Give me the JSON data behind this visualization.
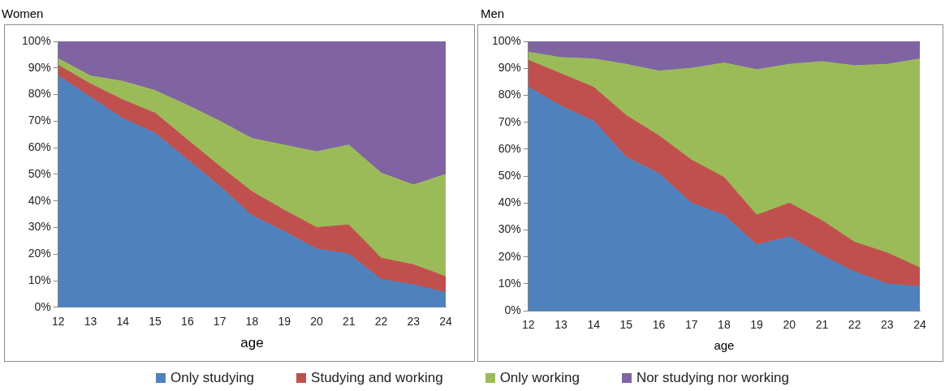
{
  "chart_data": [
    {
      "type": "area",
      "title": "Women",
      "xlabel": "age",
      "stacked": true,
      "legend": "bottom",
      "categories": [
        "12",
        "13",
        "14",
        "15",
        "16",
        "17",
        "18",
        "19",
        "20",
        "21",
        "22",
        "23",
        "24"
      ],
      "ylim": [
        0,
        100
      ],
      "yticks": [
        {
          "value": 0,
          "label": "0%"
        },
        {
          "value": 10,
          "label": "10%"
        },
        {
          "value": 20,
          "label": "20%"
        },
        {
          "value": 30,
          "label": "30%"
        },
        {
          "value": 40,
          "label": "40%"
        },
        {
          "value": 50,
          "label": "50%"
        },
        {
          "value": 60,
          "label": "60%"
        },
        {
          "value": 70,
          "label": "70%"
        },
        {
          "value": 80,
          "label": "80%"
        },
        {
          "value": 90,
          "label": "90%"
        },
        {
          "value": 100,
          "label": "100%"
        }
      ],
      "series": [
        {
          "name": "Only studying",
          "color": "#4f81bd",
          "values": [
            87,
            79,
            71,
            65.5,
            55.5,
            45.5,
            34.5,
            28.5,
            22,
            20,
            10.5,
            8.5,
            5.5
          ]
        },
        {
          "name": "Studying and working",
          "color": "#c0504d",
          "values": [
            4,
            5,
            7,
            7.5,
            7.5,
            7.5,
            9,
            8,
            8,
            11,
            8,
            7.5,
            6
          ]
        },
        {
          "name": "Only working",
          "color": "#9bbb59",
          "values": [
            2.5,
            3,
            7,
            8.5,
            13,
            17,
            20,
            24.5,
            28.5,
            30,
            32,
            30,
            38.5
          ]
        },
        {
          "name": "Nor studying nor working",
          "color": "#8064a2",
          "values": [
            6.5,
            13,
            15,
            18.5,
            24,
            30,
            36.5,
            39,
            41.5,
            39,
            49.5,
            54,
            50
          ]
        }
      ]
    },
    {
      "type": "area",
      "title": "Men",
      "xlabel": "age",
      "stacked": true,
      "categories": [
        "12",
        "13",
        "14",
        "15",
        "16",
        "17",
        "18",
        "19",
        "20",
        "21",
        "22",
        "23",
        "24"
      ],
      "ylim": [
        0,
        100
      ],
      "yticks": [
        {
          "value": 0,
          "label": "0%"
        },
        {
          "value": 10,
          "label": "10%"
        },
        {
          "value": 20,
          "label": "20%"
        },
        {
          "value": 30,
          "label": "30%"
        },
        {
          "value": 40,
          "label": "40%"
        },
        {
          "value": 50,
          "label": "50%"
        },
        {
          "value": 60,
          "label": "60%"
        },
        {
          "value": 70,
          "label": "70%"
        },
        {
          "value": 80,
          "label": "80%"
        },
        {
          "value": 90,
          "label": "90%"
        },
        {
          "value": 100,
          "label": "100%"
        }
      ],
      "series": [
        {
          "color": "#4f81bd",
          "values": [
            83,
            76,
            70.5,
            57,
            51,
            40,
            35.5,
            24.5,
            27.5,
            20.5,
            14.5,
            10,
            9
          ]
        },
        {
          "color": "#c0504d",
          "values": [
            10,
            12,
            12.5,
            15.5,
            14,
            16,
            14,
            11,
            12.5,
            13,
            11,
            11.5,
            7
          ]
        },
        {
          "color": "#9bbb59",
          "values": [
            3,
            6,
            10.5,
            19,
            24,
            34,
            42.5,
            54,
            51.5,
            59,
            65.5,
            70,
            77.5
          ]
        },
        {
          "color": "#8064a2",
          "values": [
            4,
            6,
            6.5,
            8.5,
            11,
            10,
            8,
            10.5,
            8.5,
            7.5,
            9,
            8.5,
            6.5
          ]
        }
      ]
    }
  ]
}
